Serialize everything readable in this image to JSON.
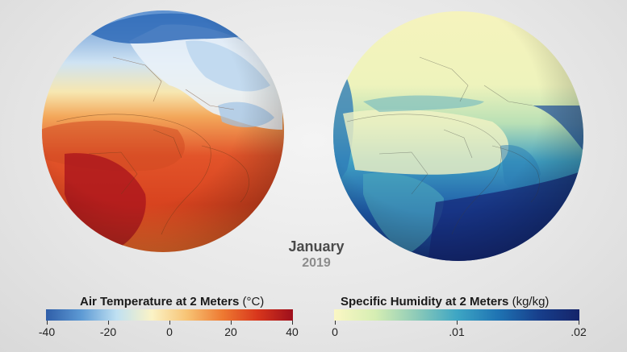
{
  "date": {
    "month": "January",
    "year": "2019"
  },
  "legends": {
    "temperature": {
      "title": "Air Temperature at 2 Meters",
      "unit": "(°C)",
      "ticks": [
        "-40",
        "-20",
        "0",
        "20",
        "40"
      ],
      "range": [
        -40,
        40
      ],
      "colors": [
        "#2f5ea8",
        "#5d9ad4",
        "#bfe0f2",
        "#fbf3c6",
        "#f7c374",
        "#ee7a32",
        "#d8361c",
        "#9e0f1c"
      ]
    },
    "humidity": {
      "title": "Specific Humidity at 2 Meters",
      "unit": "(kg/kg)",
      "ticks": [
        "0",
        ".01",
        ".02"
      ],
      "range": [
        0,
        0.02
      ],
      "colors": [
        "#fbf7c4",
        "#d6eeb3",
        "#8ecbb8",
        "#3ea6c4",
        "#1f74b3",
        "#173f8c",
        "#15246a"
      ]
    }
  },
  "globes": {
    "temperature": {
      "variable": "air-temperature"
    },
    "humidity": {
      "variable": "specific-humidity"
    }
  }
}
